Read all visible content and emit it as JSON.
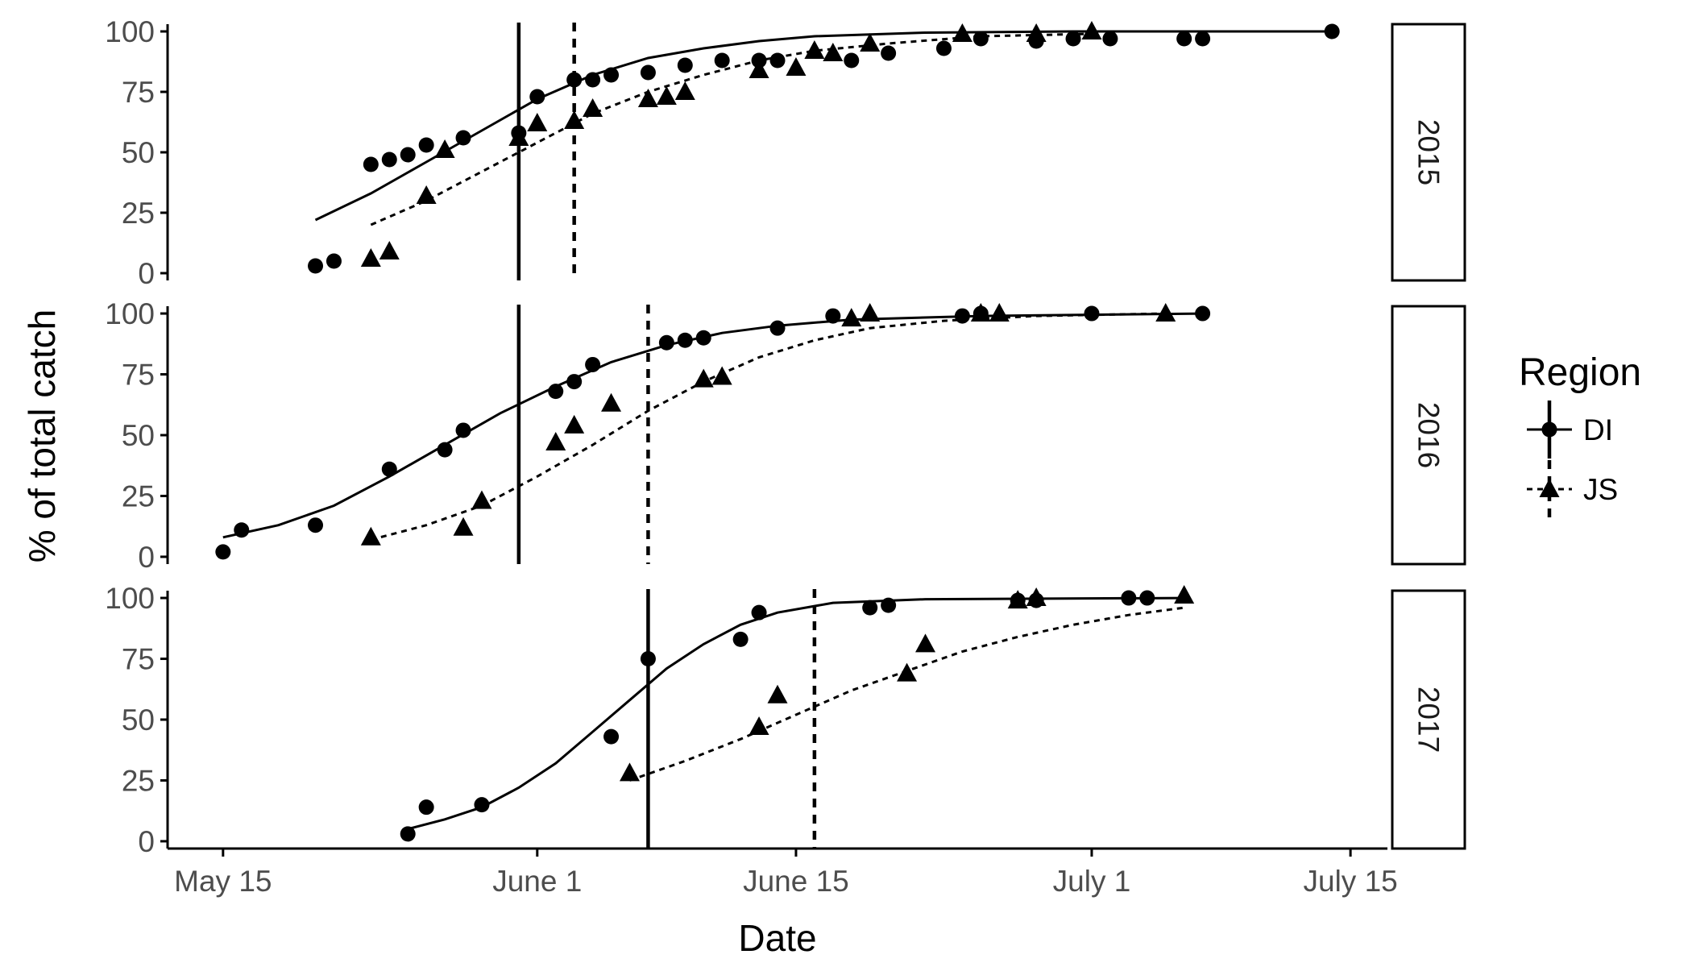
{
  "chart_data": {
    "type": "scatter",
    "xlabel": "Date",
    "ylabel": "% of total catch",
    "x_ticks": [
      "May 15",
      "June 1",
      "June 15",
      "July 1",
      "July 15"
    ],
    "x_tick_dates": [
      "05-15",
      "06-01",
      "06-15",
      "07-01",
      "07-15"
    ],
    "xlim": [
      "05-12",
      "07-17"
    ],
    "y_ticks": [
      "0",
      "25",
      "50",
      "75",
      "100"
    ],
    "ylim": [
      -3,
      103
    ],
    "grid": false,
    "legend": {
      "title": "Region",
      "position": "right",
      "entries": [
        {
          "label": "DI",
          "marker": "circle",
          "line": "solid"
        },
        {
          "label": "JS",
          "marker": "triangle",
          "line": "dashed"
        }
      ]
    },
    "facets": [
      {
        "label": "2015",
        "series": [
          {
            "name": "DI",
            "points": [
              [
                "05-20",
                3
              ],
              [
                "05-21",
                5
              ],
              [
                "05-23",
                45
              ],
              [
                "05-24",
                47
              ],
              [
                "05-25",
                49
              ],
              [
                "05-26",
                53
              ],
              [
                "05-28",
                56
              ],
              [
                "05-31",
                58
              ],
              [
                "06-01",
                73
              ],
              [
                "06-03",
                80
              ],
              [
                "06-04",
                80
              ],
              [
                "06-05",
                82
              ],
              [
                "06-07",
                83
              ],
              [
                "06-09",
                86
              ],
              [
                "06-11",
                88
              ],
              [
                "06-13",
                88
              ],
              [
                "06-14",
                88
              ],
              [
                "06-18",
                88
              ],
              [
                "06-20",
                91
              ],
              [
                "06-23",
                93
              ],
              [
                "06-25",
                97
              ],
              [
                "06-28",
                96
              ],
              [
                "06-30",
                97
              ],
              [
                "07-02",
                97
              ],
              [
                "07-06",
                97
              ],
              [
                "07-07",
                97
              ],
              [
                "07-14",
                100
              ]
            ],
            "fit": [
              [
                "05-20",
                22
              ],
              [
                "05-23",
                33
              ],
              [
                "05-26",
                46
              ],
              [
                "05-29",
                59
              ],
              [
                "06-01",
                72
              ],
              [
                "06-04",
                82
              ],
              [
                "06-07",
                89
              ],
              [
                "06-10",
                93
              ],
              [
                "06-13",
                96
              ],
              [
                "06-16",
                98
              ],
              [
                "06-22",
                99.5
              ],
              [
                "06-30",
                100
              ],
              [
                "07-14",
                100
              ]
            ],
            "vline": "05-31"
          },
          {
            "name": "JS",
            "points": [
              [
                "05-23",
                6
              ],
              [
                "05-24",
                9
              ],
              [
                "05-26",
                32
              ],
              [
                "05-27",
                51
              ],
              [
                "05-31",
                56
              ],
              [
                "06-01",
                62
              ],
              [
                "06-03",
                63
              ],
              [
                "06-04",
                68
              ],
              [
                "06-07",
                72
              ],
              [
                "06-08",
                73
              ],
              [
                "06-09",
                75
              ],
              [
                "06-13",
                84
              ],
              [
                "06-15",
                85
              ],
              [
                "06-16",
                92
              ],
              [
                "06-17",
                91
              ],
              [
                "06-19",
                95
              ],
              [
                "06-24",
                99
              ],
              [
                "06-28",
                99
              ],
              [
                "07-01",
                100
              ]
            ],
            "fit": [
              [
                "05-23",
                20
              ],
              [
                "05-26",
                30
              ],
              [
                "05-29",
                42
              ],
              [
                "06-01",
                54
              ],
              [
                "06-04",
                66
              ],
              [
                "06-07",
                75
              ],
              [
                "06-10",
                82
              ],
              [
                "06-13",
                88
              ],
              [
                "06-16",
                92
              ],
              [
                "06-20",
                95
              ],
              [
                "06-25",
                98
              ],
              [
                "07-01",
                99
              ]
            ],
            "vline": "06-03"
          }
        ]
      },
      {
        "label": "2016",
        "series": [
          {
            "name": "DI",
            "points": [
              [
                "05-15",
                2
              ],
              [
                "05-16",
                11
              ],
              [
                "05-20",
                13
              ],
              [
                "05-24",
                36
              ],
              [
                "05-27",
                44
              ],
              [
                "05-28",
                52
              ],
              [
                "06-02",
                68
              ],
              [
                "06-03",
                72
              ],
              [
                "06-04",
                79
              ],
              [
                "06-08",
                88
              ],
              [
                "06-09",
                89
              ],
              [
                "06-10",
                90
              ],
              [
                "06-14",
                94
              ],
              [
                "06-17",
                99
              ],
              [
                "06-24",
                99
              ],
              [
                "06-25",
                100
              ],
              [
                "07-01",
                100
              ],
              [
                "07-07",
                100
              ]
            ],
            "fit": [
              [
                "05-15",
                8
              ],
              [
                "05-18",
                13
              ],
              [
                "05-21",
                21
              ],
              [
                "05-24",
                33
              ],
              [
                "05-27",
                46
              ],
              [
                "05-30",
                59
              ],
              [
                "06-02",
                70
              ],
              [
                "06-05",
                80
              ],
              [
                "06-08",
                87
              ],
              [
                "06-11",
                92
              ],
              [
                "06-14",
                95
              ],
              [
                "06-18",
                97.5
              ],
              [
                "06-25",
                99
              ],
              [
                "07-07",
                100
              ]
            ],
            "vline": "05-31"
          },
          {
            "name": "JS",
            "points": [
              [
                "05-23",
                8
              ],
              [
                "05-28",
                12
              ],
              [
                "05-29",
                23
              ],
              [
                "06-02",
                47
              ],
              [
                "06-03",
                54
              ],
              [
                "06-05",
                63
              ],
              [
                "06-10",
                73
              ],
              [
                "06-11",
                74
              ],
              [
                "06-18",
                98
              ],
              [
                "06-19",
                100
              ],
              [
                "06-25",
                100
              ],
              [
                "06-26",
                100
              ],
              [
                "07-05",
                100
              ]
            ],
            "fit": [
              [
                "05-23",
                7
              ],
              [
                "05-26",
                13
              ],
              [
                "05-29",
                21
              ],
              [
                "06-01",
                33
              ],
              [
                "06-04",
                46
              ],
              [
                "06-07",
                60
              ],
              [
                "06-10",
                72
              ],
              [
                "06-13",
                82
              ],
              [
                "06-16",
                89
              ],
              [
                "06-19",
                94
              ],
              [
                "06-23",
                97
              ],
              [
                "06-28",
                99
              ],
              [
                "07-05",
                100
              ]
            ],
            "vline": "06-07"
          }
        ]
      },
      {
        "label": "2017",
        "series": [
          {
            "name": "DI",
            "points": [
              [
                "05-25",
                3
              ],
              [
                "05-26",
                14
              ],
              [
                "05-29",
                15
              ],
              [
                "06-05",
                43
              ],
              [
                "06-07",
                75
              ],
              [
                "06-12",
                83
              ],
              [
                "06-13",
                94
              ],
              [
                "06-19",
                96
              ],
              [
                "06-20",
                97
              ],
              [
                "06-27",
                99
              ],
              [
                "06-28",
                99
              ],
              [
                "07-03",
                100
              ],
              [
                "07-04",
                100
              ]
            ],
            "fit": [
              [
                "05-25",
                5
              ],
              [
                "05-27",
                9
              ],
              [
                "05-29",
                14
              ],
              [
                "05-31",
                22
              ],
              [
                "06-02",
                32
              ],
              [
                "06-04",
                45
              ],
              [
                "06-06",
                58
              ],
              [
                "06-08",
                71
              ],
              [
                "06-10",
                81
              ],
              [
                "06-12",
                89
              ],
              [
                "06-14",
                94
              ],
              [
                "06-17",
                98
              ],
              [
                "06-22",
                99.5
              ],
              [
                "07-06",
                100
              ]
            ],
            "vline": "06-07"
          },
          {
            "name": "JS",
            "points": [
              [
                "06-06",
                28
              ],
              [
                "06-13",
                47
              ],
              [
                "06-14",
                60
              ],
              [
                "06-21",
                69
              ],
              [
                "06-22",
                81
              ],
              [
                "06-27",
                99
              ],
              [
                "06-28",
                100
              ],
              [
                "07-06",
                101
              ]
            ],
            "fit": [
              [
                "06-06",
                25
              ],
              [
                "06-09",
                33
              ],
              [
                "06-12",
                42
              ],
              [
                "06-15",
                52
              ],
              [
                "06-18",
                62
              ],
              [
                "06-21",
                70
              ],
              [
                "06-24",
                78
              ],
              [
                "06-27",
                84
              ],
              [
                "06-30",
                89
              ],
              [
                "07-03",
                93
              ],
              [
                "07-06",
                96
              ]
            ],
            "vline": "06-16"
          }
        ]
      }
    ]
  }
}
